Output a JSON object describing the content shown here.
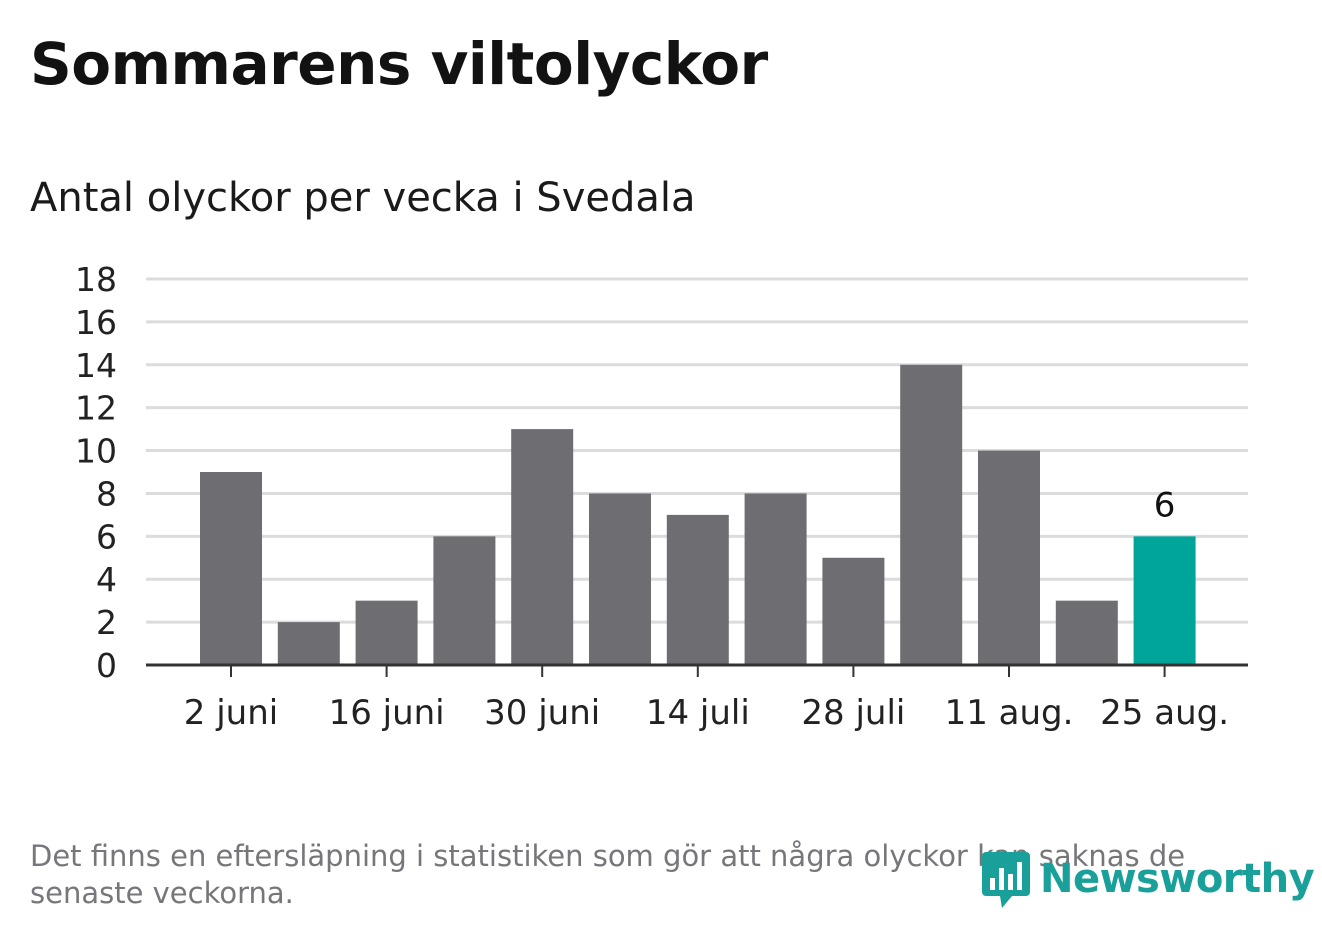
{
  "header": {
    "title": "Sommarens viltolyckor",
    "subtitle": "Antal olyckor per vecka i Svedala"
  },
  "footer": {
    "note": "Det finns en eftersläpning i statistiken som gör att några olyckor kan saknas de senaste veckorna.",
    "logo_text": "Newsworthy",
    "logo_icon": "newsworthy-chart-bubble-icon"
  },
  "colors": {
    "bar": "#6e6d72",
    "highlight": "#00a59a",
    "grid": "#dcdcdc",
    "axis": "#333333",
    "brand": "#1aa09a"
  },
  "chart_data": {
    "type": "bar",
    "title": "Sommarens viltolyckor",
    "subtitle": "Antal olyckor per vecka i Svedala",
    "xlabel": "",
    "ylabel": "",
    "ylim": [
      0,
      18
    ],
    "yticks": [
      0,
      2,
      4,
      6,
      8,
      10,
      12,
      14,
      16,
      18
    ],
    "categories": [
      "2 juni",
      "",
      "16 juni",
      "",
      "30 juni",
      "",
      "14 juli",
      "",
      "28 juli",
      "",
      "11 aug.",
      "",
      "25 aug."
    ],
    "values": [
      9,
      2,
      3,
      6,
      11,
      8,
      7,
      8,
      5,
      14,
      10,
      3,
      6
    ],
    "highlight_index": 12,
    "data_labels": [
      {
        "index": 12,
        "text": "6"
      }
    ],
    "grid": true,
    "legend": "none"
  }
}
